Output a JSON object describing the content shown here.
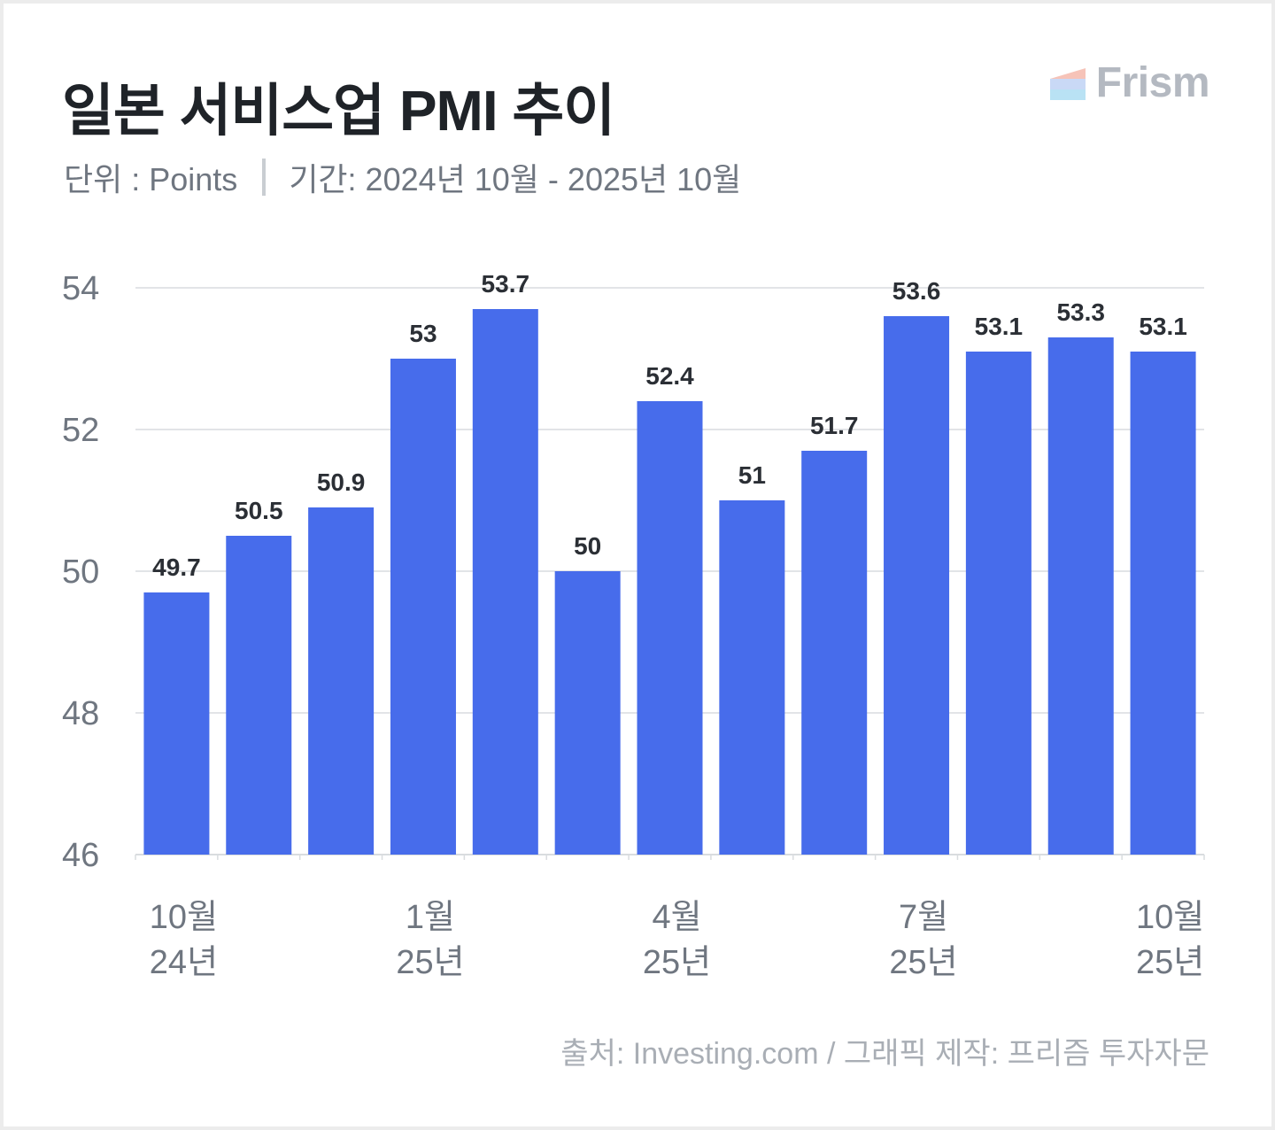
{
  "header": {
    "title": "일본 서비스업 PMI 추이",
    "unit": "단위 : Points",
    "period": "기간: 2024년 10월 - 2025년 10월"
  },
  "brand": {
    "name": "Frism",
    "logo_colors": [
      "#f6c3b8",
      "#c9d9f6",
      "#b9e2f4"
    ]
  },
  "footer": {
    "source": "출처: Investing.com / 그래픽 제작: 프리즘 투자자문"
  },
  "colors": {
    "bar": "#476ceb",
    "grid": "#d9dcdf",
    "axis_text": "#6f7680",
    "label_text": "#2b2f35"
  },
  "chart_data": {
    "type": "bar",
    "title": "일본 서비스업 PMI 추이",
    "xlabel": "",
    "ylabel": "Points",
    "ylim": [
      46,
      54
    ],
    "yticks": [
      46,
      48,
      50,
      52,
      54
    ],
    "values": [
      49.7,
      50.5,
      50.9,
      53,
      53.7,
      50,
      52.4,
      51,
      51.7,
      53.6,
      53.1,
      53.3,
      53.1
    ],
    "value_labels": [
      "49.7",
      "50.5",
      "50.9",
      "53",
      "53.7",
      "50",
      "52.4",
      "51",
      "51.7",
      "53.6",
      "53.1",
      "53.3",
      "53.1"
    ],
    "x_tick_labels": [
      {
        "index": 0,
        "month": "10월",
        "year": "24년"
      },
      {
        "index": 3,
        "month": "1월",
        "year": "25년"
      },
      {
        "index": 6,
        "month": "4월",
        "year": "25년"
      },
      {
        "index": 9,
        "month": "7월",
        "year": "25년"
      },
      {
        "index": 12,
        "month": "10월",
        "year": "25년"
      }
    ],
    "grid": true,
    "legend": "none"
  }
}
